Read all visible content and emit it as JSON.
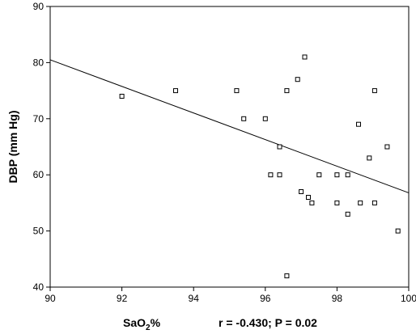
{
  "chart_data": {
    "type": "scatter",
    "title": "",
    "xlabel": {
      "base": "SaO",
      "sub": "2",
      "suffix": "%"
    },
    "ylabel": "DBP (mm Hg)",
    "annotation": "r = -0.430; P = 0.02",
    "xlim": [
      90,
      100
    ],
    "ylim": [
      40,
      90
    ],
    "xticks": [
      "90",
      "92",
      "94",
      "96",
      "98",
      "100"
    ],
    "yticks": [
      "40",
      "50",
      "60",
      "70",
      "80",
      "90"
    ],
    "grid": false,
    "marker": "hollow-square",
    "points": [
      {
        "x": 92.0,
        "y": 74
      },
      {
        "x": 93.5,
        "y": 75
      },
      {
        "x": 95.2,
        "y": 75
      },
      {
        "x": 95.4,
        "y": 70
      },
      {
        "x": 96.0,
        "y": 70
      },
      {
        "x": 96.15,
        "y": 60
      },
      {
        "x": 96.4,
        "y": 65
      },
      {
        "x": 96.4,
        "y": 60
      },
      {
        "x": 96.6,
        "y": 75
      },
      {
        "x": 96.6,
        "y": 42
      },
      {
        "x": 96.9,
        "y": 77
      },
      {
        "x": 97.0,
        "y": 57
      },
      {
        "x": 97.1,
        "y": 81
      },
      {
        "x": 97.2,
        "y": 56
      },
      {
        "x": 97.3,
        "y": 55
      },
      {
        "x": 97.5,
        "y": 60
      },
      {
        "x": 98.0,
        "y": 60
      },
      {
        "x": 98.0,
        "y": 55
      },
      {
        "x": 98.3,
        "y": 60
      },
      {
        "x": 98.3,
        "y": 53
      },
      {
        "x": 98.6,
        "y": 69
      },
      {
        "x": 98.65,
        "y": 55
      },
      {
        "x": 98.9,
        "y": 63
      },
      {
        "x": 99.05,
        "y": 75
      },
      {
        "x": 99.05,
        "y": 55
      },
      {
        "x": 99.4,
        "y": 65
      },
      {
        "x": 99.7,
        "y": 50
      }
    ],
    "trendline": {
      "x": [
        90,
        100
      ],
      "y": [
        80.5,
        56.8
      ]
    }
  }
}
